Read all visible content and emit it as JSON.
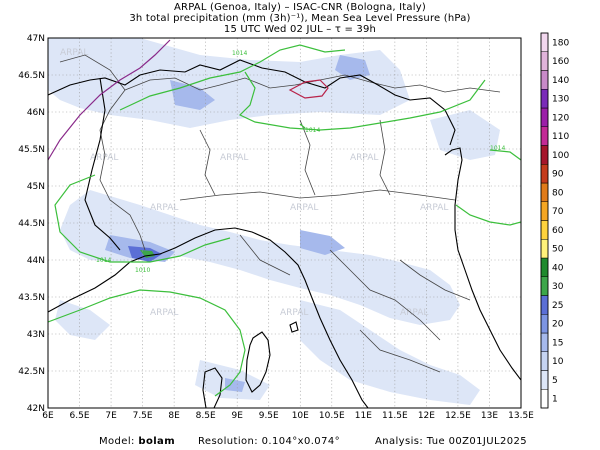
{
  "title": {
    "line1": "ARPAL (Genoa, Italy)  –  ISAC-CNR (Bologna, Italy)",
    "line2": "3h total precipitation (mm (3h)⁻¹), Mean Sea Level Pressure (hPa)",
    "line3": "15 UTC Wed 02 JUL  –  τ = 39h"
  },
  "map": {
    "lon_labels": [
      "6E",
      "6.5E",
      "7E",
      "7.5E",
      "8E",
      "8.5E",
      "9E",
      "9.5E",
      "10E",
      "10.5E",
      "11E",
      "11.5E",
      "12E",
      "12.5E",
      "13E",
      "13.5E"
    ],
    "lat_labels": [
      "47N",
      "46.5N",
      "46N",
      "45.5N",
      "45N",
      "44.5N",
      "44N",
      "43.5N",
      "43N",
      "42.5N",
      "42N"
    ],
    "watermark": "ARPAL",
    "isobar_labels": [
      "1014",
      "1014",
      "1014",
      "1014",
      "1010"
    ]
  },
  "colorbar": {
    "levels": [
      "1",
      "5",
      "10",
      "15",
      "20",
      "25",
      "30",
      "40",
      "50",
      "60",
      "70",
      "80",
      "90",
      "100",
      "110",
      "120",
      "130",
      "140",
      "160",
      "180"
    ],
    "colors": [
      "#ffffff",
      "#dde6f7",
      "#c6d4f2",
      "#a6b9ec",
      "#7d95e3",
      "#5b6fd6",
      "#3da64a",
      "#1f8a2d",
      "#fff27a",
      "#ffd33d",
      "#f5a623",
      "#e07b1a",
      "#c43b1c",
      "#a5152b",
      "#c32a96",
      "#9b1fa8",
      "#7a2bb8",
      "#c88ac8",
      "#e0b3da",
      "#f2d7ee"
    ]
  },
  "footer": {
    "model_label": "Model:",
    "model_value": "bolam",
    "resolution_label": "Resolution:",
    "resolution_value": "0.104°x0.074°",
    "analysis_label": "Analysis:",
    "analysis_value": "Tue 00Z01JUL2025"
  }
}
